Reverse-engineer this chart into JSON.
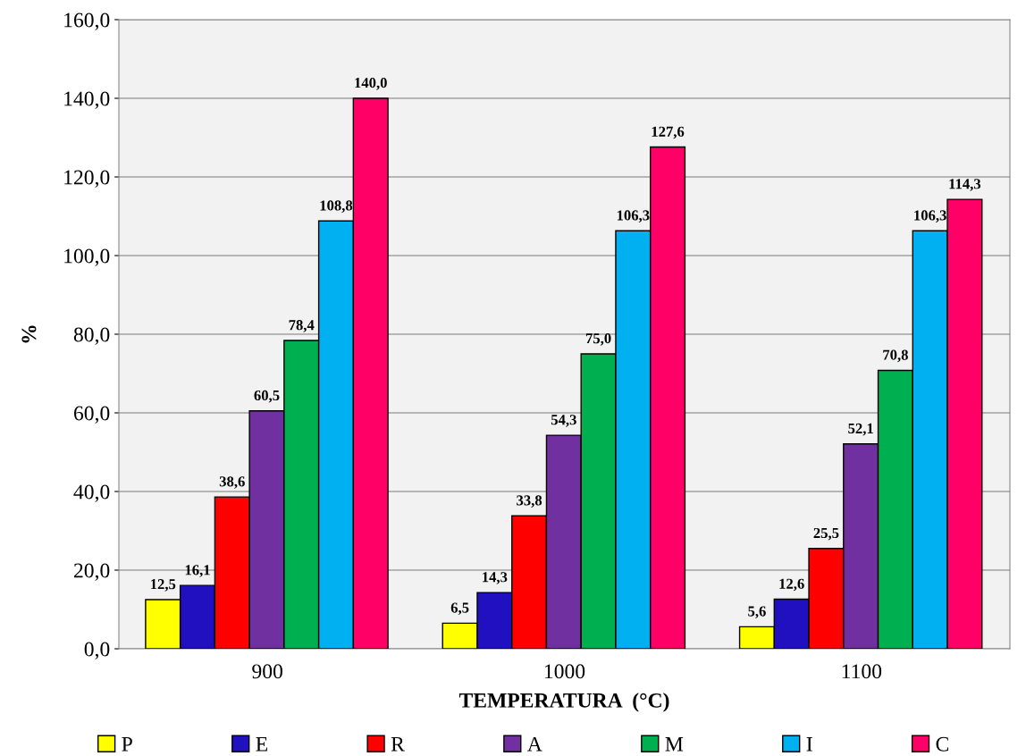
{
  "chart_data": {
    "type": "bar",
    "xlabel": "TEMPERATURA  (°C)",
    "ylabel": "%",
    "categories": [
      "900",
      "1000",
      "1100"
    ],
    "series": [
      {
        "name": "P",
        "color": "#ffff00",
        "values": [
          12.5,
          6.5,
          5.6
        ],
        "value_labels": [
          "12,5",
          "6,5",
          "5,6"
        ]
      },
      {
        "name": "E",
        "color": "#2010c0",
        "values": [
          16.1,
          14.3,
          12.6
        ],
        "value_labels": [
          "16,1",
          "14,3",
          "12,6"
        ]
      },
      {
        "name": "R",
        "color": "#ff0000",
        "values": [
          38.6,
          33.8,
          25.5
        ],
        "value_labels": [
          "38,6",
          "33,8",
          "25,5"
        ]
      },
      {
        "name": "A",
        "color": "#7030a0",
        "values": [
          60.5,
          54.3,
          52.1
        ],
        "value_labels": [
          "60,5",
          "54,3",
          "52,1"
        ]
      },
      {
        "name": "M",
        "color": "#00b050",
        "values": [
          78.4,
          75.0,
          70.8
        ],
        "value_labels": [
          "78,4",
          "75,0",
          "70,8"
        ]
      },
      {
        "name": "I",
        "color": "#00b0f0",
        "values": [
          108.8,
          106.3,
          106.3
        ],
        "value_labels": [
          "108,8",
          "106,3",
          "106,3"
        ]
      },
      {
        "name": "C",
        "color": "#ff0066",
        "values": [
          140.0,
          127.6,
          114.3
        ],
        "value_labels": [
          "140,0",
          "127,6",
          "114,3"
        ]
      }
    ],
    "ylim": [
      0,
      160
    ],
    "yticks": [
      {
        "value": 0,
        "label": "0,0"
      },
      {
        "value": 20,
        "label": "20,0"
      },
      {
        "value": 40,
        "label": "40,0"
      },
      {
        "value": 60,
        "label": "60,0"
      },
      {
        "value": 80,
        "label": "80,0"
      },
      {
        "value": 100,
        "label": "100,0"
      },
      {
        "value": 120,
        "label": "120,0"
      },
      {
        "value": 140,
        "label": "140,0"
      },
      {
        "value": 160,
        "label": "160,0"
      }
    ],
    "grid": "y",
    "legend": "bottom"
  }
}
